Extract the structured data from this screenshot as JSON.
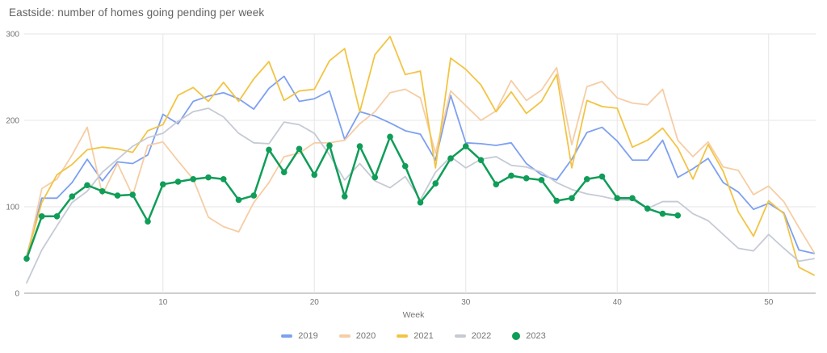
{
  "chart_data": {
    "type": "line",
    "title": "Eastside: number of homes going pending per week",
    "xlabel": "Week",
    "ylabel": "",
    "xlim": [
      1,
      53
    ],
    "ylim": [
      0,
      300
    ],
    "x_ticks": [
      10,
      20,
      30,
      40,
      50
    ],
    "y_ticks": [
      0,
      100,
      200,
      300
    ],
    "grid": true,
    "legend_position": "bottom-center",
    "x": "week number 1-53",
    "series": [
      {
        "name": "2019",
        "color": "#7da0f0",
        "marker": false,
        "values": [
          43,
          110,
          110,
          128,
          155,
          130,
          152,
          150,
          160,
          207,
          196,
          222,
          228,
          232,
          225,
          213,
          237,
          251,
          222,
          225,
          234,
          178,
          210,
          205,
          197,
          188,
          184,
          154,
          229,
          174,
          173,
          171,
          174,
          150,
          137,
          131,
          155,
          186,
          192,
          176,
          154,
          154,
          177,
          134,
          144,
          156,
          128,
          117,
          97,
          104,
          93,
          50,
          46
        ]
      },
      {
        "name": "2020",
        "color": "#f6cda4",
        "marker": false,
        "values": [
          40,
          121,
          132,
          160,
          192,
          114,
          150,
          113,
          171,
          175,
          153,
          132,
          88,
          77,
          71,
          105,
          128,
          158,
          162,
          174,
          174,
          177,
          196,
          210,
          232,
          236,
          226,
          162,
          234,
          217,
          200,
          211,
          246,
          223,
          235,
          261,
          172,
          239,
          245,
          226,
          220,
          218,
          236,
          177,
          158,
          175,
          146,
          142,
          114,
          124,
          106,
          76,
          47
        ]
      },
      {
        "name": "2021",
        "color": "#f2c444",
        "marker": false,
        "values": [
          42,
          105,
          137,
          149,
          166,
          169,
          167,
          163,
          188,
          195,
          229,
          238,
          222,
          244,
          222,
          248,
          268,
          223,
          234,
          236,
          269,
          283,
          210,
          276,
          297,
          253,
          257,
          145,
          272,
          259,
          241,
          210,
          233,
          208,
          222,
          253,
          145,
          223,
          216,
          214,
          169,
          177,
          191,
          168,
          132,
          172,
          141,
          94,
          66,
          107,
          92,
          30,
          21
        ]
      },
      {
        "name": "2022",
        "color": "#c5cad5",
        "marker": false,
        "values": [
          12,
          50,
          78,
          105,
          118,
          140,
          155,
          170,
          180,
          185,
          199,
          210,
          214,
          204,
          185,
          174,
          173,
          198,
          195,
          185,
          160,
          131,
          150,
          130,
          122,
          135,
          108,
          140,
          158,
          145,
          155,
          158,
          148,
          146,
          140,
          128,
          120,
          115,
          112,
          108,
          108,
          98,
          106,
          106,
          92,
          84,
          68,
          52,
          49,
          68,
          52,
          37,
          40
        ]
      },
      {
        "name": "2023",
        "color": "#0f9d58",
        "marker": true,
        "values": [
          40,
          89,
          89,
          112,
          125,
          118,
          113,
          114,
          83,
          126,
          129,
          132,
          134,
          132,
          108,
          113,
          166,
          140,
          167,
          137,
          171,
          112,
          170,
          134,
          181,
          147,
          105,
          127,
          156,
          170,
          154,
          126,
          136,
          133,
          131,
          107,
          110,
          132,
          135,
          110,
          110,
          98,
          92,
          90
        ]
      }
    ]
  },
  "axis": {
    "tick_color": "#757575",
    "grid_color": "#e6e6e6",
    "baseline_color": "#9e9e9e"
  },
  "legend": {
    "items": [
      "2019",
      "2020",
      "2021",
      "2022",
      "2023"
    ]
  }
}
